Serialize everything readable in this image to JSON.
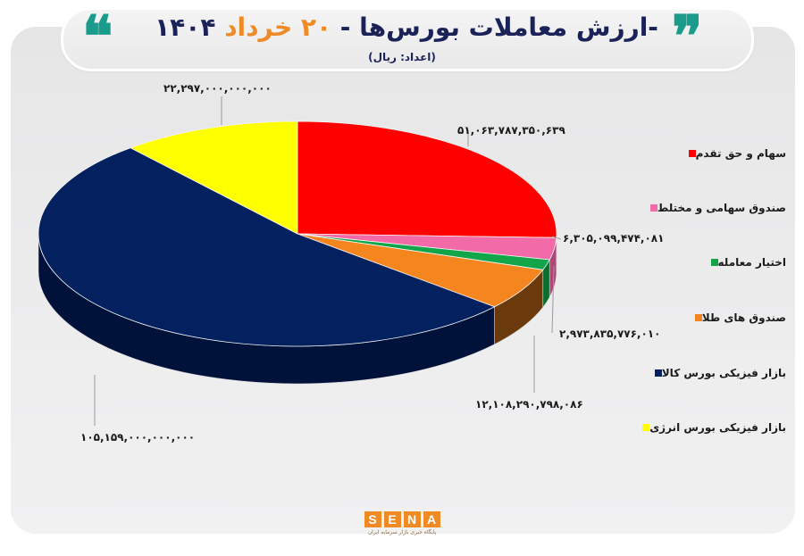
{
  "header": {
    "title_prefix": "-ارزش معاملات بورس‌ها - ",
    "title_day": "۲۰ خرداد",
    "title_year": " ۱۴۰۴",
    "subtitle": "(اعداد: ریال)",
    "quote_open": "❝",
    "quote_close": "❞"
  },
  "colors": {
    "accent_orange": "#f08a24",
    "title_navy": "#1b2257",
    "quote_teal": "#1a9b8c"
  },
  "chart_data": {
    "type": "pie",
    "style": "3d",
    "title": "ارزش معاملات بورس‌ها - ۲۰ خرداد ۱۴۰۴",
    "subtitle": "(اعداد: ریال)",
    "unit": "ریال",
    "legend_position": "right",
    "slices": [
      {
        "label": "سهام و حق تقدم",
        "value": 51063787350639,
        "display": "۵۱,۰۶۳,۷۸۷,۳۵۰,۶۳۹",
        "color": "#ff0000",
        "side_color": "#a80000"
      },
      {
        "label": "صندوق سهامی و مختلط",
        "value": 6305099474081,
        "display": "۶,۳۰۵,۰۹۹,۴۷۴,۰۸۱",
        "color": "#f26aa8",
        "side_color": "#b04578"
      },
      {
        "label": "اختیار معامله",
        "value": 2973835776010,
        "display": "۲,۹۷۳,۸۳۵,۷۷۶,۰۱۰",
        "color": "#12a54a",
        "side_color": "#0b6e30"
      },
      {
        "label": "صندوق های طلا",
        "value": 12108290798086,
        "display": "۱۲,۱۰۸,۲۹۰,۷۹۸,۰۸۶",
        "color": "#f5861f",
        "side_color": "#6a3a0c"
      },
      {
        "label": "بازار فیزیکی بورس کالا",
        "value": 105159000000000,
        "display": "۱۰۵,۱۵۹,۰۰۰,۰۰۰,۰۰۰",
        "color": "#03215f",
        "side_color": "#01123a"
      },
      {
        "label": "بازار فیزیکی بورس انرژی",
        "value": 22297000000000,
        "display": "۲۲,۲۹۷,۰۰۰,۰۰۰,۰۰۰",
        "color": "#ffff00",
        "side_color": "#b3b300"
      }
    ]
  },
  "footer": {
    "logo_letters": [
      "S",
      "E",
      "N",
      "A"
    ],
    "logo_tagline": "پایگاه خبری بازار سرمایه ایران"
  }
}
